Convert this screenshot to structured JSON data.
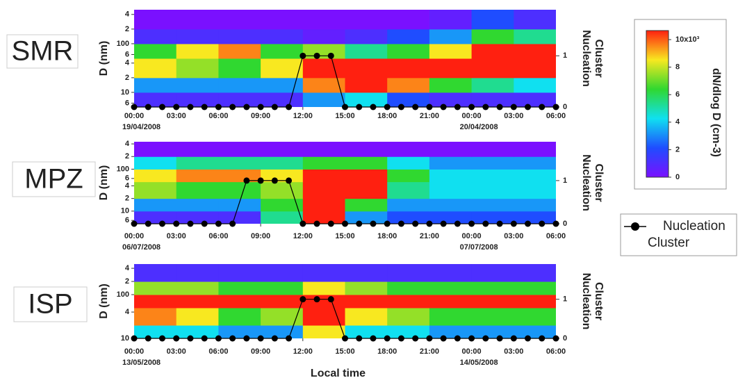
{
  "chart_data": [
    {
      "type": "heatmap",
      "title": "SMR",
      "ylabel": "D (nm)",
      "y2label": [
        "Nucleation",
        "Cluster"
      ],
      "log_y": true,
      "ylim": [
        5,
        500
      ],
      "yticks": [
        {
          "value": 400,
          "label": "4"
        },
        {
          "value": 200,
          "label": "2"
        },
        100,
        {
          "value": 60,
          "label": "6"
        },
        {
          "value": 40,
          "label": "4"
        },
        {
          "value": 20,
          "label": "2"
        },
        10,
        {
          "value": 6,
          "label": "6"
        }
      ],
      "xlim": [
        0,
        30
      ],
      "xticks": [
        {
          "value": 0,
          "label": "00:00"
        },
        {
          "value": 3,
          "label": "03:00"
        },
        {
          "value": 6,
          "label": "06:00"
        },
        {
          "value": 9,
          "label": "09:00"
        },
        {
          "value": 12,
          "label": "12:00"
        },
        {
          "value": 15,
          "label": "15:00"
        },
        {
          "value": 18,
          "label": "18:00"
        },
        {
          "value": 21,
          "label": "21:00"
        },
        {
          "value": 24,
          "label": "00:00"
        },
        {
          "value": 27,
          "label": "03:00"
        },
        {
          "value": 30,
          "label": "06:00"
        }
      ],
      "date_labels": [
        {
          "value": 0,
          "label": "19/04/2008"
        },
        {
          "value": 24,
          "label": "20/04/2008"
        }
      ],
      "y2lim": [
        0,
        1.9
      ],
      "y2ticks": [
        0,
        1
      ],
      "xbins": [
        0,
        3,
        6,
        9,
        12,
        15,
        18,
        21,
        24,
        27,
        30
      ],
      "ybins": [
        5,
        10,
        20,
        50,
        100,
        200,
        500
      ],
      "z": [
        [
          1,
          1,
          1,
          1,
          3,
          4,
          2,
          1,
          1,
          1
        ],
        [
          3,
          3,
          3,
          3,
          9,
          10,
          9,
          6,
          5,
          4
        ],
        [
          8,
          7,
          6,
          8,
          10,
          10,
          10,
          10,
          10,
          10
        ],
        [
          6,
          8,
          9,
          6,
          7,
          5,
          6,
          8,
          10,
          10
        ],
        [
          1,
          1,
          1,
          1,
          0.5,
          1,
          2,
          3,
          6,
          5
        ],
        [
          0,
          0,
          0,
          0,
          0,
          0,
          0,
          0.5,
          2,
          1
        ]
      ],
      "x": [
        0,
        1,
        2,
        3,
        4,
        5,
        6,
        7,
        8,
        9,
        10,
        11,
        12,
        13,
        14,
        15,
        16,
        17,
        18,
        19,
        20,
        21,
        22,
        23,
        24,
        25,
        26,
        27,
        28,
        29,
        30
      ],
      "series": [
        {
          "name": "Nucleation Cluster",
          "color": "#000000",
          "axis": "y2",
          "values": [
            0,
            0,
            0,
            0,
            0,
            0,
            0,
            0,
            0,
            0,
            0,
            0,
            1,
            1,
            1,
            0,
            0,
            0,
            0,
            0,
            0,
            0,
            0,
            0,
            0,
            0,
            0,
            0,
            0,
            0,
            0
          ]
        }
      ]
    },
    {
      "type": "heatmap",
      "title": "MPZ",
      "ylabel": "D (nm)",
      "y2label": [
        "Nucleation",
        "Cluster"
      ],
      "log_y": true,
      "ylim": [
        5,
        450
      ],
      "yticks": [
        {
          "value": 400,
          "label": "4"
        },
        {
          "value": 200,
          "label": "2"
        },
        100,
        {
          "value": 60,
          "label": "6"
        },
        {
          "value": 40,
          "label": "4"
        },
        {
          "value": 20,
          "label": "2"
        },
        10,
        {
          "value": 6,
          "label": "6"
        }
      ],
      "xlim": [
        0,
        30
      ],
      "xticks": [
        {
          "value": 0,
          "label": "00:00"
        },
        {
          "value": 3,
          "label": "03:00"
        },
        {
          "value": 6,
          "label": "06:00"
        },
        {
          "value": 9,
          "label": "09:00"
        },
        {
          "value": 12,
          "label": "12:00"
        },
        {
          "value": 15,
          "label": "15:00"
        },
        {
          "value": 18,
          "label": "18:00"
        },
        {
          "value": 21,
          "label": "21:00"
        },
        {
          "value": 24,
          "label": "00:00"
        },
        {
          "value": 27,
          "label": "03:00"
        },
        {
          "value": 30,
          "label": "06:00"
        }
      ],
      "date_labels": [
        {
          "value": 0,
          "label": "06/07/2008"
        },
        {
          "value": 24,
          "label": "07/07/2008"
        }
      ],
      "y2lim": [
        0,
        1.9
      ],
      "y2ticks": [
        0,
        1
      ],
      "xbins": [
        0,
        3,
        6,
        9,
        12,
        15,
        18,
        21,
        24,
        27,
        30
      ],
      "ybins": [
        5,
        10,
        20,
        50,
        100,
        200,
        450
      ],
      "z": [
        [
          1,
          1,
          1,
          5,
          10,
          3,
          2,
          2,
          2,
          2
        ],
        [
          3,
          3,
          3,
          6,
          10,
          6,
          3,
          3,
          3,
          3
        ],
        [
          7,
          6,
          6,
          7,
          10,
          10,
          5,
          4,
          4,
          4
        ],
        [
          8,
          9,
          9,
          8,
          10,
          10,
          6,
          4,
          4,
          4
        ],
        [
          4,
          5,
          5,
          5,
          6,
          6,
          4,
          3,
          3,
          3
        ],
        [
          0,
          0,
          0,
          0,
          0,
          0,
          0,
          0,
          0,
          0
        ]
      ],
      "x": [
        0,
        1,
        2,
        3,
        4,
        5,
        6,
        7,
        8,
        9,
        10,
        11,
        12,
        13,
        14,
        15,
        16,
        17,
        18,
        19,
        20,
        21,
        22,
        23,
        24,
        25,
        26,
        27,
        28,
        29,
        30
      ],
      "series": [
        {
          "name": "Nucleation Cluster",
          "color": "#000000",
          "axis": "y2",
          "values": [
            0,
            0,
            0,
            0,
            0,
            0,
            0,
            0,
            1,
            1,
            1,
            1,
            0,
            0,
            0,
            0,
            0,
            0,
            0,
            0,
            0,
            0,
            0,
            0,
            0,
            0,
            0,
            0,
            0,
            0,
            0
          ]
        }
      ]
    },
    {
      "type": "heatmap",
      "title": "ISP",
      "ylabel": "D (nm)",
      "y2label": [
        "Nucleation",
        "Cluster"
      ],
      "xlabel": "Local time",
      "log_y": true,
      "ylim": [
        10,
        500
      ],
      "yticks": [
        {
          "value": 400,
          "label": "4"
        },
        {
          "value": 200,
          "label": "2"
        },
        100,
        {
          "value": 40,
          "label": "4"
        },
        10
      ],
      "xlim": [
        0,
        30
      ],
      "xticks": [
        {
          "value": 0,
          "label": "00:00"
        },
        {
          "value": 3,
          "label": "03:00"
        },
        {
          "value": 6,
          "label": "06:00"
        },
        {
          "value": 9,
          "label": "09:00"
        },
        {
          "value": 12,
          "label": "12:00"
        },
        {
          "value": 15,
          "label": "15:00"
        },
        {
          "value": 18,
          "label": "18:00"
        },
        {
          "value": 21,
          "label": "21:00"
        },
        {
          "value": 24,
          "label": "00:00"
        },
        {
          "value": 27,
          "label": "03:00"
        },
        {
          "value": 30,
          "label": "06:00"
        }
      ],
      "date_labels": [
        {
          "value": 0,
          "label": "13/05/2008"
        },
        {
          "value": 24,
          "label": "14/05/2008"
        }
      ],
      "y2lim": [
        0,
        1.9
      ],
      "y2ticks": [
        0,
        1
      ],
      "xbins": [
        0,
        3,
        6,
        9,
        12,
        15,
        18,
        21,
        24,
        27,
        30
      ],
      "ybins": [
        10,
        20,
        50,
        100,
        200,
        500
      ],
      "z": [
        [
          4,
          4,
          3,
          3,
          8,
          4,
          4,
          3,
          3,
          3
        ],
        [
          9,
          8,
          6,
          7,
          10,
          8,
          7,
          6,
          6,
          6
        ],
        [
          10,
          10,
          10,
          10,
          10,
          10,
          10,
          10,
          10,
          10
        ],
        [
          7,
          7,
          6,
          6,
          8,
          7,
          6,
          6,
          6,
          6
        ],
        [
          1,
          1,
          1,
          1,
          1,
          1,
          1,
          1,
          1,
          1
        ]
      ],
      "x": [
        0,
        1,
        2,
        3,
        4,
        5,
        6,
        7,
        8,
        9,
        10,
        11,
        12,
        13,
        14,
        15,
        16,
        17,
        18,
        19,
        20,
        21,
        22,
        23,
        24,
        25,
        26,
        27,
        28,
        29,
        30
      ],
      "series": [
        {
          "name": "Nucleation Cluster",
          "color": "#000000",
          "axis": "y2",
          "values": [
            0,
            0,
            0,
            0,
            0,
            0,
            0,
            0,
            0,
            0,
            0,
            0,
            1,
            1,
            1,
            0,
            0,
            0,
            0,
            0,
            0,
            0,
            0,
            0,
            0,
            0,
            0,
            0,
            0,
            0,
            0
          ]
        }
      ]
    }
  ],
  "colorbar": {
    "label": "dN/dlog D (cm-3)",
    "clim": [
      0,
      10
    ],
    "colorscale": [
      "#7a10ff",
      "#1f4dff",
      "#10e0f0",
      "#30d830",
      "#f8e820",
      "#ff2010"
    ],
    "ticks": [
      0,
      2,
      4,
      6,
      8,
      {
        "value": 10,
        "label": "10x10³"
      }
    ]
  }
}
